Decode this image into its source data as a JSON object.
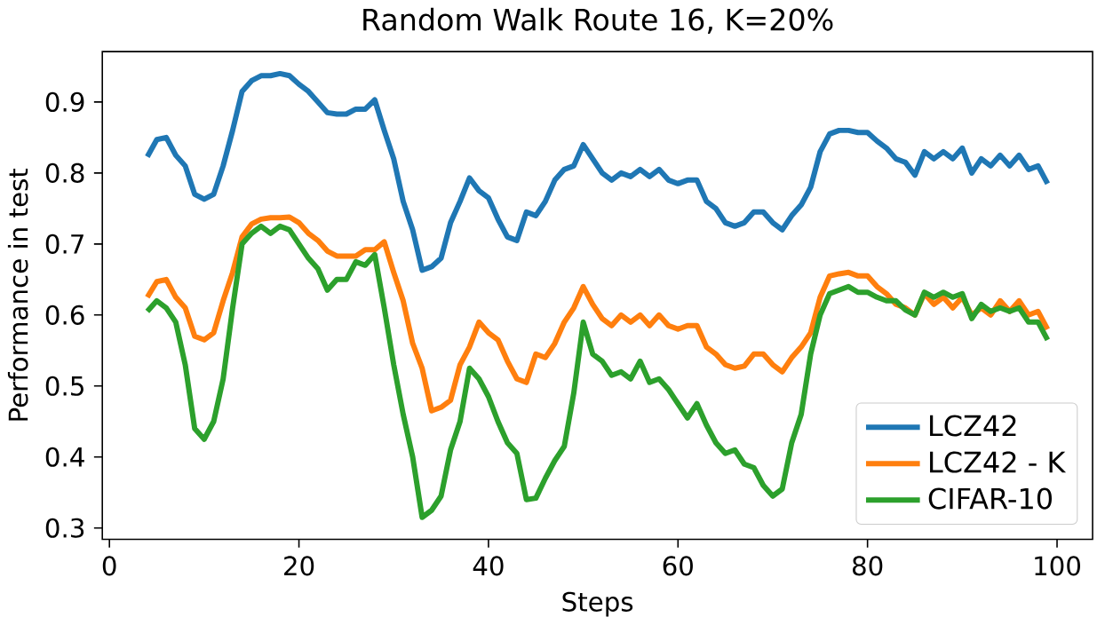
{
  "chart_data": {
    "type": "line",
    "title": "Random Walk Route 16, K=20%",
    "xlabel": "Steps",
    "ylabel": "Performance in test",
    "x": [
      4,
      5,
      6,
      7,
      8,
      9,
      10,
      11,
      12,
      13,
      14,
      15,
      16,
      17,
      18,
      19,
      20,
      21,
      22,
      23,
      24,
      25,
      26,
      27,
      28,
      29,
      30,
      31,
      32,
      33,
      34,
      35,
      36,
      37,
      38,
      39,
      40,
      41,
      42,
      43,
      44,
      45,
      46,
      47,
      48,
      49,
      50,
      51,
      52,
      53,
      54,
      55,
      56,
      57,
      58,
      59,
      60,
      61,
      62,
      63,
      64,
      65,
      66,
      67,
      68,
      69,
      70,
      71,
      72,
      73,
      74,
      75,
      76,
      77,
      78,
      79,
      80,
      81,
      82,
      83,
      84,
      85,
      86,
      87,
      88,
      89,
      90,
      91,
      92,
      93,
      94,
      95,
      96,
      97,
      98,
      99
    ],
    "series": [
      {
        "name": "LCZ42",
        "color": "#1f77b4",
        "values": [
          0.823,
          0.847,
          0.85,
          0.825,
          0.81,
          0.77,
          0.763,
          0.77,
          0.81,
          0.86,
          0.915,
          0.93,
          0.937,
          0.937,
          0.94,
          0.937,
          0.925,
          0.915,
          0.9,
          0.885,
          0.883,
          0.883,
          0.89,
          0.89,
          0.903,
          0.86,
          0.82,
          0.76,
          0.72,
          0.663,
          0.668,
          0.68,
          0.73,
          0.76,
          0.793,
          0.775,
          0.765,
          0.735,
          0.71,
          0.705,
          0.745,
          0.74,
          0.76,
          0.79,
          0.805,
          0.81,
          0.84,
          0.82,
          0.8,
          0.79,
          0.8,
          0.795,
          0.805,
          0.795,
          0.805,
          0.79,
          0.785,
          0.79,
          0.79,
          0.76,
          0.75,
          0.73,
          0.725,
          0.73,
          0.745,
          0.745,
          0.73,
          0.72,
          0.74,
          0.755,
          0.78,
          0.83,
          0.855,
          0.86,
          0.86,
          0.857,
          0.857,
          0.845,
          0.835,
          0.82,
          0.815,
          0.797,
          0.83,
          0.82,
          0.83,
          0.82,
          0.835,
          0.8,
          0.82,
          0.81,
          0.825,
          0.81,
          0.825,
          0.805,
          0.81,
          0.785
        ]
      },
      {
        "name": "LCZ42 - K",
        "color": "#ff7f0e",
        "values": [
          0.625,
          0.647,
          0.65,
          0.625,
          0.61,
          0.57,
          0.565,
          0.575,
          0.62,
          0.66,
          0.71,
          0.728,
          0.735,
          0.737,
          0.737,
          0.738,
          0.73,
          0.715,
          0.705,
          0.69,
          0.683,
          0.683,
          0.683,
          0.692,
          0.692,
          0.703,
          0.66,
          0.62,
          0.56,
          0.525,
          0.465,
          0.47,
          0.48,
          0.53,
          0.555,
          0.59,
          0.575,
          0.565,
          0.535,
          0.51,
          0.505,
          0.545,
          0.54,
          0.56,
          0.59,
          0.61,
          0.64,
          0.615,
          0.595,
          0.585,
          0.6,
          0.59,
          0.6,
          0.585,
          0.6,
          0.585,
          0.58,
          0.585,
          0.585,
          0.555,
          0.545,
          0.53,
          0.525,
          0.528,
          0.545,
          0.545,
          0.53,
          0.52,
          0.54,
          0.555,
          0.575,
          0.625,
          0.655,
          0.658,
          0.66,
          0.655,
          0.655,
          0.64,
          0.63,
          0.615,
          0.61,
          0.6,
          0.63,
          0.615,
          0.625,
          0.61,
          0.625,
          0.6,
          0.61,
          0.6,
          0.62,
          0.605,
          0.62,
          0.6,
          0.605,
          0.58
        ]
      },
      {
        "name": "CIFAR-10",
        "color": "#2ca02c",
        "values": [
          0.605,
          0.62,
          0.61,
          0.59,
          0.53,
          0.44,
          0.425,
          0.45,
          0.51,
          0.61,
          0.7,
          0.715,
          0.725,
          0.715,
          0.725,
          0.72,
          0.7,
          0.68,
          0.665,
          0.635,
          0.65,
          0.65,
          0.675,
          0.67,
          0.685,
          0.61,
          0.53,
          0.46,
          0.4,
          0.315,
          0.325,
          0.345,
          0.41,
          0.45,
          0.525,
          0.51,
          0.485,
          0.45,
          0.42,
          0.405,
          0.34,
          0.342,
          0.37,
          0.395,
          0.415,
          0.49,
          0.59,
          0.545,
          0.535,
          0.515,
          0.52,
          0.51,
          0.535,
          0.505,
          0.51,
          0.495,
          0.475,
          0.455,
          0.475,
          0.445,
          0.42,
          0.405,
          0.41,
          0.39,
          0.385,
          0.36,
          0.345,
          0.355,
          0.42,
          0.46,
          0.545,
          0.6,
          0.63,
          0.635,
          0.64,
          0.632,
          0.632,
          0.625,
          0.62,
          0.62,
          0.607,
          0.6,
          0.632,
          0.625,
          0.632,
          0.625,
          0.63,
          0.595,
          0.615,
          0.605,
          0.61,
          0.605,
          0.61,
          0.59,
          0.59,
          0.565
        ]
      }
    ],
    "xlim": [
      -0.75,
      103.75
    ],
    "ylim": [
      0.284,
      0.971
    ],
    "xticks": [
      0,
      20,
      40,
      60,
      80,
      100
    ],
    "yticks": [
      0.3,
      0.4,
      0.5,
      0.6,
      0.7,
      0.8,
      0.9
    ],
    "legend": "bottom right",
    "grid": false,
    "marker": "none",
    "line_style": "solid"
  }
}
